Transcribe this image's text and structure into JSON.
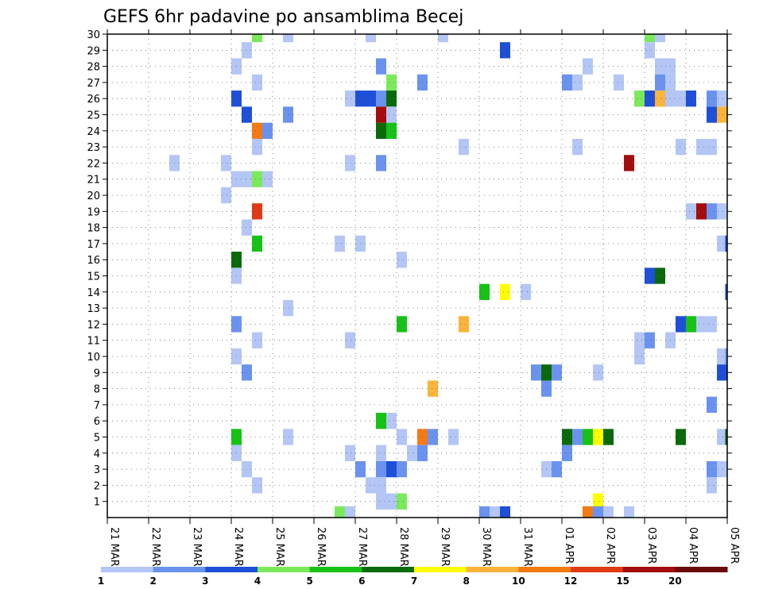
{
  "chart_data": {
    "type": "heatmap",
    "title": "GEFS 6hr padavine po ansamblima Becej",
    "x_tick_labels": [
      "21 MAR",
      "22 MAR",
      "23 MAR",
      "24 MAR",
      "25 MAR",
      "26 MAR",
      "27 MAR",
      "28 MAR",
      "29 MAR",
      "30 MAR",
      "31 MAR",
      "01 APR",
      "02 APR",
      "03 APR",
      "04 APR",
      "05 APR"
    ],
    "y_tick_labels": [
      "1",
      "2",
      "3",
      "4",
      "5",
      "6",
      "7",
      "8",
      "9",
      "10",
      "11",
      "12",
      "13",
      "14",
      "15",
      "16",
      "17",
      "18",
      "19",
      "20",
      "21",
      "22",
      "23",
      "24",
      "25",
      "26",
      "27",
      "28",
      "29",
      "30"
    ],
    "xlim": [
      0,
      60
    ],
    "ylim": [
      0,
      30
    ],
    "time_step": "6hr",
    "colorbar": {
      "labels": [
        "1",
        "2",
        "3",
        "4",
        "5",
        "6",
        "7",
        "8",
        "10",
        "12",
        "15",
        "20"
      ],
      "colors": [
        "#b3c6f5",
        "#6a93f0",
        "#1e4fd8",
        "#7bea5a",
        "#17c217",
        "#0a6a0a",
        "#ffff00",
        "#fbb33a",
        "#f47a12",
        "#e03a12",
        "#a30d0d",
        "#6b0a0a"
      ]
    },
    "cells": [
      {
        "x": 14.5,
        "y": 30,
        "v": 4
      },
      {
        "x": 17.5,
        "y": 30,
        "v": 1
      },
      {
        "x": 25.5,
        "y": 30,
        "v": 1
      },
      {
        "x": 32.5,
        "y": 30,
        "v": 1
      },
      {
        "x": 52.5,
        "y": 30,
        "v": 4
      },
      {
        "x": 53.5,
        "y": 30,
        "v": 1
      },
      {
        "x": 13.5,
        "y": 29,
        "v": 1
      },
      {
        "x": 38.5,
        "y": 29,
        "v": 3
      },
      {
        "x": 52.5,
        "y": 29,
        "v": 1
      },
      {
        "x": 12.5,
        "y": 28,
        "v": 1
      },
      {
        "x": 26.5,
        "y": 28,
        "v": 2
      },
      {
        "x": 46.5,
        "y": 28,
        "v": 1
      },
      {
        "x": 53.5,
        "y": 28,
        "v": 1
      },
      {
        "x": 54.5,
        "y": 28,
        "v": 1
      },
      {
        "x": 14.5,
        "y": 27,
        "v": 1
      },
      {
        "x": 27.5,
        "y": 27,
        "v": 4
      },
      {
        "x": 30.5,
        "y": 27,
        "v": 2
      },
      {
        "x": 44.5,
        "y": 27,
        "v": 2
      },
      {
        "x": 45.5,
        "y": 27,
        "v": 1
      },
      {
        "x": 49.5,
        "y": 27,
        "v": 1
      },
      {
        "x": 53.5,
        "y": 27,
        "v": 2
      },
      {
        "x": 54.5,
        "y": 27,
        "v": 1
      },
      {
        "x": 12.5,
        "y": 26,
        "v": 3
      },
      {
        "x": 23.5,
        "y": 26,
        "v": 1
      },
      {
        "x": 24.5,
        "y": 26,
        "v": 3
      },
      {
        "x": 25.5,
        "y": 26,
        "v": 3
      },
      {
        "x": 26.5,
        "y": 26,
        "v": 2
      },
      {
        "x": 27.5,
        "y": 26,
        "v": 6
      },
      {
        "x": 51.5,
        "y": 26,
        "v": 4
      },
      {
        "x": 52.5,
        "y": 26,
        "v": 3
      },
      {
        "x": 53.5,
        "y": 26,
        "v": 8
      },
      {
        "x": 54.5,
        "y": 26,
        "v": 1
      },
      {
        "x": 55.5,
        "y": 26,
        "v": 1
      },
      {
        "x": 56.5,
        "y": 26,
        "v": 3
      },
      {
        "x": 58.5,
        "y": 26,
        "v": 2
      },
      {
        "x": 59.5,
        "y": 26,
        "v": 1
      },
      {
        "x": 13.5,
        "y": 25,
        "v": 3
      },
      {
        "x": 17.5,
        "y": 25,
        "v": 2
      },
      {
        "x": 26.5,
        "y": 25,
        "v": 11
      },
      {
        "x": 27.5,
        "y": 25,
        "v": 1
      },
      {
        "x": 58.5,
        "y": 25,
        "v": 3
      },
      {
        "x": 59.5,
        "y": 25,
        "v": 8
      },
      {
        "x": 14.5,
        "y": 24,
        "v": 9
      },
      {
        "x": 15.5,
        "y": 24,
        "v": 2
      },
      {
        "x": 26.5,
        "y": 24,
        "v": 6
      },
      {
        "x": 27.5,
        "y": 24,
        "v": 5
      },
      {
        "x": 14.5,
        "y": 23,
        "v": 1
      },
      {
        "x": 34.5,
        "y": 23,
        "v": 1
      },
      {
        "x": 45.5,
        "y": 23,
        "v": 1
      },
      {
        "x": 55.5,
        "y": 23,
        "v": 1
      },
      {
        "x": 57.5,
        "y": 23,
        "v": 1
      },
      {
        "x": 58.5,
        "y": 23,
        "v": 1
      },
      {
        "x": 6.5,
        "y": 22,
        "v": 1
      },
      {
        "x": 11.5,
        "y": 22,
        "v": 1
      },
      {
        "x": 23.5,
        "y": 22,
        "v": 1
      },
      {
        "x": 26.5,
        "y": 22,
        "v": 2
      },
      {
        "x": 50.5,
        "y": 22,
        "v": 11
      },
      {
        "x": 12.5,
        "y": 21,
        "v": 1
      },
      {
        "x": 13.5,
        "y": 21,
        "v": 1
      },
      {
        "x": 14.5,
        "y": 21,
        "v": 4
      },
      {
        "x": 15.5,
        "y": 21,
        "v": 1
      },
      {
        "x": 11.5,
        "y": 20,
        "v": 1
      },
      {
        "x": 14.5,
        "y": 19,
        "v": 10
      },
      {
        "x": 56.5,
        "y": 19,
        "v": 1
      },
      {
        "x": 57.5,
        "y": 19,
        "v": 11
      },
      {
        "x": 58.5,
        "y": 19,
        "v": 2
      },
      {
        "x": 59.5,
        "y": 19,
        "v": 1
      },
      {
        "x": 13.5,
        "y": 18,
        "v": 1
      },
      {
        "x": 14.5,
        "y": 17,
        "v": 5
      },
      {
        "x": 22.5,
        "y": 17,
        "v": 1
      },
      {
        "x": 24.5,
        "y": 17,
        "v": 1
      },
      {
        "x": 59.5,
        "y": 17,
        "v": 1
      },
      {
        "x": 60.3,
        "y": 17,
        "v": 3
      },
      {
        "x": 12.5,
        "y": 16,
        "v": 6
      },
      {
        "x": 28.5,
        "y": 16,
        "v": 1
      },
      {
        "x": 12.5,
        "y": 15,
        "v": 1
      },
      {
        "x": 52.5,
        "y": 15,
        "v": 3
      },
      {
        "x": 53.5,
        "y": 15,
        "v": 6
      },
      {
        "x": 36.5,
        "y": 14,
        "v": 5
      },
      {
        "x": 38.5,
        "y": 14,
        "v": 7
      },
      {
        "x": 40.5,
        "y": 14,
        "v": 1
      },
      {
        "x": 60.3,
        "y": 14,
        "v": 3
      },
      {
        "x": 17.5,
        "y": 13,
        "v": 1
      },
      {
        "x": 12.5,
        "y": 12,
        "v": 2
      },
      {
        "x": 28.5,
        "y": 12,
        "v": 5
      },
      {
        "x": 34.5,
        "y": 12,
        "v": 8
      },
      {
        "x": 55.5,
        "y": 12,
        "v": 3
      },
      {
        "x": 56.5,
        "y": 12,
        "v": 5
      },
      {
        "x": 57.5,
        "y": 12,
        "v": 1
      },
      {
        "x": 58.5,
        "y": 12,
        "v": 1
      },
      {
        "x": 14.5,
        "y": 11,
        "v": 1
      },
      {
        "x": 23.5,
        "y": 11,
        "v": 1
      },
      {
        "x": 51.5,
        "y": 11,
        "v": 1
      },
      {
        "x": 52.5,
        "y": 11,
        "v": 2
      },
      {
        "x": 54.5,
        "y": 11,
        "v": 1
      },
      {
        "x": 12.5,
        "y": 10,
        "v": 1
      },
      {
        "x": 51.5,
        "y": 10,
        "v": 1
      },
      {
        "x": 59.5,
        "y": 10,
        "v": 1
      },
      {
        "x": 60.3,
        "y": 10,
        "v": 2
      },
      {
        "x": 13.5,
        "y": 9,
        "v": 2
      },
      {
        "x": 41.5,
        "y": 9,
        "v": 2
      },
      {
        "x": 42.5,
        "y": 9,
        "v": 6
      },
      {
        "x": 43.5,
        "y": 9,
        "v": 2
      },
      {
        "x": 47.5,
        "y": 9,
        "v": 1
      },
      {
        "x": 59.5,
        "y": 9,
        "v": 3
      },
      {
        "x": 31.5,
        "y": 8,
        "v": 8
      },
      {
        "x": 42.5,
        "y": 8,
        "v": 2
      },
      {
        "x": 58.5,
        "y": 7,
        "v": 2
      },
      {
        "x": 26.5,
        "y": 6,
        "v": 5
      },
      {
        "x": 27.5,
        "y": 6,
        "v": 1
      },
      {
        "x": 12.5,
        "y": 5,
        "v": 5
      },
      {
        "x": 17.5,
        "y": 5,
        "v": 1
      },
      {
        "x": 28.5,
        "y": 5,
        "v": 1
      },
      {
        "x": 30.5,
        "y": 5,
        "v": 9
      },
      {
        "x": 31.5,
        "y": 5,
        "v": 2
      },
      {
        "x": 33.5,
        "y": 5,
        "v": 1
      },
      {
        "x": 44.5,
        "y": 5,
        "v": 6
      },
      {
        "x": 45.5,
        "y": 5,
        "v": 2
      },
      {
        "x": 46.5,
        "y": 5,
        "v": 5
      },
      {
        "x": 47.5,
        "y": 5,
        "v": 7
      },
      {
        "x": 48.5,
        "y": 5,
        "v": 6
      },
      {
        "x": 55.5,
        "y": 5,
        "v": 6
      },
      {
        "x": 59.5,
        "y": 5,
        "v": 1
      },
      {
        "x": 60.3,
        "y": 5,
        "v": 6
      },
      {
        "x": 12.5,
        "y": 4,
        "v": 1
      },
      {
        "x": 23.5,
        "y": 4,
        "v": 1
      },
      {
        "x": 26.5,
        "y": 4,
        "v": 1
      },
      {
        "x": 29.5,
        "y": 4,
        "v": 1
      },
      {
        "x": 30.5,
        "y": 4,
        "v": 2
      },
      {
        "x": 44.5,
        "y": 4,
        "v": 2
      },
      {
        "x": 13.5,
        "y": 3,
        "v": 1
      },
      {
        "x": 24.5,
        "y": 3,
        "v": 2
      },
      {
        "x": 26.5,
        "y": 3,
        "v": 2
      },
      {
        "x": 27.5,
        "y": 3,
        "v": 3
      },
      {
        "x": 28.5,
        "y": 3,
        "v": 2
      },
      {
        "x": 42.5,
        "y": 3,
        "v": 1
      },
      {
        "x": 43.5,
        "y": 3,
        "v": 2
      },
      {
        "x": 58.5,
        "y": 3,
        "v": 2
      },
      {
        "x": 59.5,
        "y": 3,
        "v": 1
      },
      {
        "x": 14.5,
        "y": 2,
        "v": 1
      },
      {
        "x": 25.5,
        "y": 2,
        "v": 1
      },
      {
        "x": 26.5,
        "y": 2,
        "v": 1
      },
      {
        "x": 58.5,
        "y": 2,
        "v": 1
      },
      {
        "x": 26.5,
        "y": 1,
        "v": 1
      },
      {
        "x": 27.5,
        "y": 1,
        "v": 1
      },
      {
        "x": 28.5,
        "y": 1,
        "v": 4
      },
      {
        "x": 47.5,
        "y": 1,
        "v": 7
      },
      {
        "x": 22.5,
        "y": 0.2,
        "v": 4
      },
      {
        "x": 23.5,
        "y": 0.2,
        "v": 1
      },
      {
        "x": 36.5,
        "y": 0.2,
        "v": 2
      },
      {
        "x": 37.5,
        "y": 0.2,
        "v": 1
      },
      {
        "x": 38.5,
        "y": 0.2,
        "v": 3
      },
      {
        "x": 46.5,
        "y": 0.2,
        "v": 9
      },
      {
        "x": 47.5,
        "y": 0.2,
        "v": 2
      },
      {
        "x": 48.5,
        "y": 0.2,
        "v": 1
      },
      {
        "x": 50.5,
        "y": 0.2,
        "v": 1
      }
    ]
  }
}
